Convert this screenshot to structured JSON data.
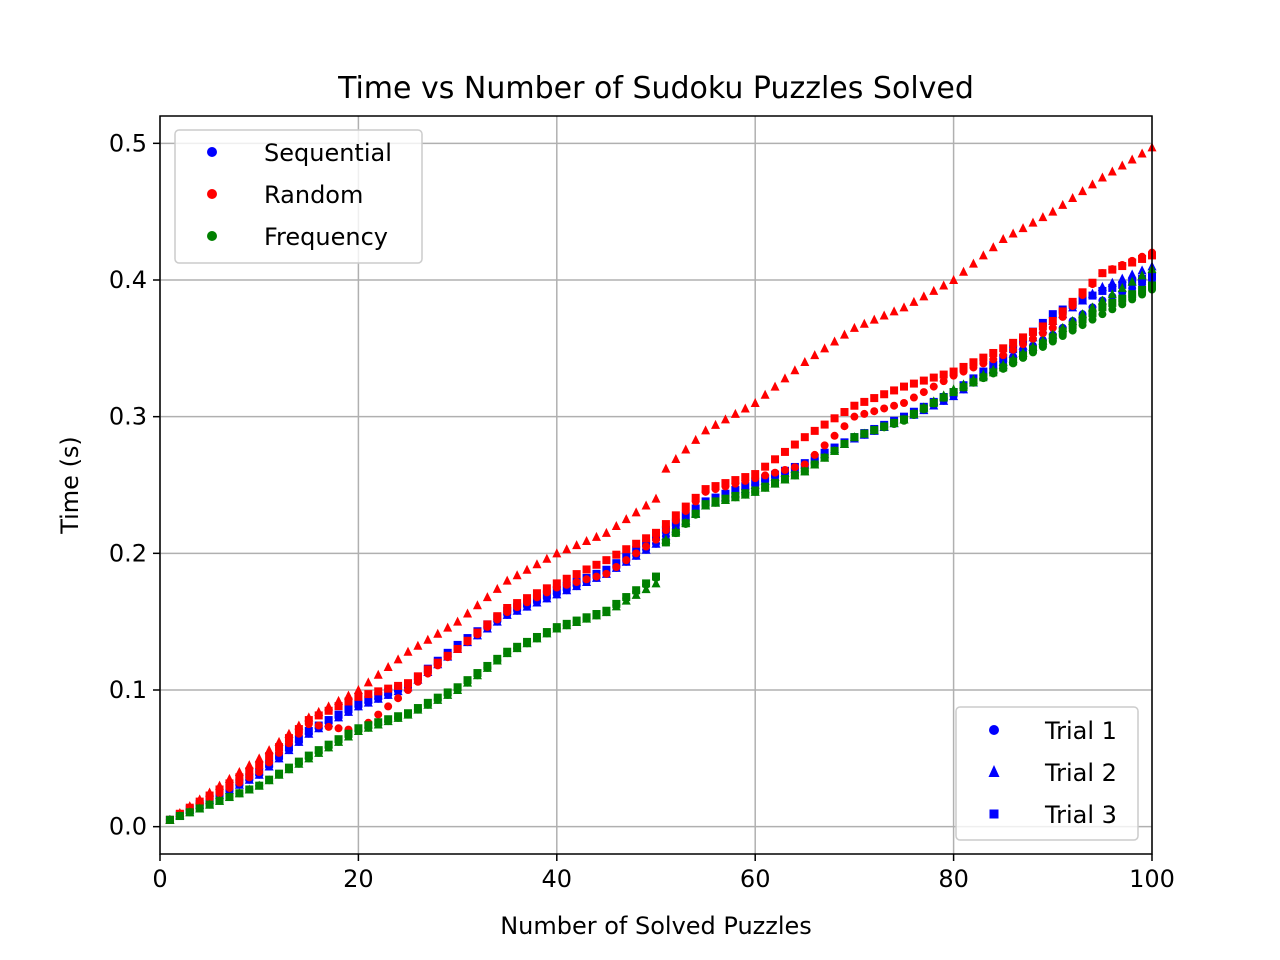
{
  "chart_data": {
    "type": "scatter",
    "title": "Time vs Number of Sudoku Puzzles Solved",
    "xlabel": "Number of Solved Puzzles",
    "ylabel": "Time (s)",
    "xlim": [
      0,
      100
    ],
    "ylim": [
      -0.02,
      0.52
    ],
    "xticks": [
      0,
      20,
      40,
      60,
      80,
      100
    ],
    "xtick_labels": [
      "0",
      "20",
      "40",
      "60",
      "80",
      "100"
    ],
    "yticks": [
      0.0,
      0.1,
      0.2,
      0.3,
      0.4,
      0.5
    ],
    "ytick_labels": [
      "0.0",
      "0.1",
      "0.2",
      "0.3",
      "0.4",
      "0.5"
    ],
    "grid": true,
    "legends": {
      "methods": {
        "placement": "upper left",
        "entries": [
          {
            "label": "Sequential",
            "color": "#0000ff"
          },
          {
            "label": "Random",
            "color": "#ff0000"
          },
          {
            "label": "Frequency",
            "color": "#008000"
          }
        ]
      },
      "trials": {
        "placement": "lower right",
        "entries": [
          {
            "label": "Trial 1",
            "marker": "circle",
            "color": "#0000ff"
          },
          {
            "label": "Trial 2",
            "marker": "triangle",
            "color": "#0000ff"
          },
          {
            "label": "Trial 3",
            "marker": "square",
            "color": "#0000ff"
          }
        ]
      }
    },
    "x_range": [
      1,
      100
    ],
    "series": [
      {
        "method": "Sequential",
        "trial": "Trial 1",
        "marker": "circle",
        "color": "#0000ff",
        "anchors": [
          [
            1,
            0.005
          ],
          [
            10,
            0.038
          ],
          [
            15,
            0.068
          ],
          [
            20,
            0.088
          ],
          [
            25,
            0.102
          ],
          [
            30,
            0.13
          ],
          [
            35,
            0.155
          ],
          [
            40,
            0.17
          ],
          [
            45,
            0.185
          ],
          [
            50,
            0.207
          ],
          [
            55,
            0.235
          ],
          [
            60,
            0.25
          ],
          [
            65,
            0.265
          ],
          [
            70,
            0.284
          ],
          [
            75,
            0.298
          ],
          [
            80,
            0.315
          ],
          [
            85,
            0.34
          ],
          [
            90,
            0.36
          ],
          [
            95,
            0.385
          ],
          [
            100,
            0.4
          ]
        ]
      },
      {
        "method": "Sequential",
        "trial": "Trial 2",
        "marker": "triangle",
        "color": "#0000ff",
        "anchors": [
          [
            1,
            0.005
          ],
          [
            10,
            0.038
          ],
          [
            15,
            0.068
          ],
          [
            20,
            0.088
          ],
          [
            25,
            0.102
          ],
          [
            30,
            0.13
          ],
          [
            35,
            0.155
          ],
          [
            40,
            0.17
          ],
          [
            45,
            0.185
          ],
          [
            50,
            0.207
          ],
          [
            55,
            0.235
          ],
          [
            60,
            0.25
          ],
          [
            65,
            0.265
          ],
          [
            70,
            0.284
          ],
          [
            75,
            0.298
          ],
          [
            80,
            0.315
          ],
          [
            85,
            0.34
          ],
          [
            90,
            0.37
          ],
          [
            95,
            0.395
          ],
          [
            100,
            0.41
          ]
        ]
      },
      {
        "method": "Sequential",
        "trial": "Trial 3",
        "marker": "square",
        "color": "#0000ff",
        "anchors": [
          [
            1,
            0.005
          ],
          [
            10,
            0.04
          ],
          [
            15,
            0.07
          ],
          [
            20,
            0.09
          ],
          [
            25,
            0.104
          ],
          [
            30,
            0.133
          ],
          [
            35,
            0.158
          ],
          [
            40,
            0.173
          ],
          [
            45,
            0.188
          ],
          [
            50,
            0.212
          ],
          [
            55,
            0.238
          ],
          [
            60,
            0.252
          ],
          [
            65,
            0.266
          ],
          [
            70,
            0.285
          ],
          [
            75,
            0.3
          ],
          [
            80,
            0.318
          ],
          [
            85,
            0.343
          ],
          [
            90,
            0.375
          ],
          [
            95,
            0.392
          ],
          [
            100,
            0.403
          ]
        ]
      },
      {
        "method": "Random",
        "trial": "Trial 1",
        "marker": "circle",
        "color": "#ff0000",
        "anchors": [
          [
            1,
            0.005
          ],
          [
            10,
            0.04
          ],
          [
            15,
            0.075
          ],
          [
            20,
            0.07
          ],
          [
            25,
            0.1
          ],
          [
            30,
            0.13
          ],
          [
            35,
            0.157
          ],
          [
            40,
            0.175
          ],
          [
            45,
            0.185
          ],
          [
            50,
            0.21
          ],
          [
            55,
            0.245
          ],
          [
            60,
            0.255
          ],
          [
            65,
            0.265
          ],
          [
            70,
            0.3
          ],
          [
            75,
            0.31
          ],
          [
            80,
            0.33
          ],
          [
            85,
            0.345
          ],
          [
            90,
            0.365
          ],
          [
            95,
            0.405
          ],
          [
            100,
            0.42
          ]
        ]
      },
      {
        "method": "Random",
        "trial": "Trial 2",
        "marker": "triangle",
        "color": "#ff0000",
        "anchors": [
          [
            1,
            0.005
          ],
          [
            10,
            0.05
          ],
          [
            15,
            0.08
          ],
          [
            20,
            0.1
          ],
          [
            25,
            0.128
          ],
          [
            30,
            0.15
          ],
          [
            35,
            0.18
          ],
          [
            40,
            0.2
          ],
          [
            45,
            0.215
          ],
          [
            50,
            0.24
          ],
          [
            51,
            0.262
          ],
          [
            55,
            0.29
          ],
          [
            60,
            0.31
          ],
          [
            65,
            0.34
          ],
          [
            70,
            0.365
          ],
          [
            75,
            0.38
          ],
          [
            80,
            0.4
          ],
          [
            85,
            0.43
          ],
          [
            90,
            0.45
          ],
          [
            95,
            0.475
          ],
          [
            100,
            0.497
          ]
        ]
      },
      {
        "method": "Random",
        "trial": "Trial 3",
        "marker": "square",
        "color": "#ff0000",
        "anchors": [
          [
            1,
            0.005
          ],
          [
            10,
            0.045
          ],
          [
            15,
            0.078
          ],
          [
            20,
            0.095
          ],
          [
            25,
            0.105
          ],
          [
            30,
            0.13
          ],
          [
            35,
            0.16
          ],
          [
            40,
            0.178
          ],
          [
            45,
            0.195
          ],
          [
            50,
            0.215
          ],
          [
            55,
            0.247
          ],
          [
            60,
            0.258
          ],
          [
            65,
            0.285
          ],
          [
            70,
            0.308
          ],
          [
            75,
            0.322
          ],
          [
            80,
            0.333
          ],
          [
            85,
            0.35
          ],
          [
            90,
            0.37
          ],
          [
            95,
            0.405
          ],
          [
            100,
            0.418
          ]
        ]
      },
      {
        "method": "Frequency",
        "trial": "Trial 1",
        "marker": "circle",
        "color": "#008000",
        "anchors": [
          [
            1,
            0.005
          ],
          [
            10,
            0.03
          ],
          [
            15,
            0.05
          ],
          [
            20,
            0.07
          ],
          [
            25,
            0.082
          ],
          [
            30,
            0.1
          ],
          [
            35,
            0.127
          ],
          [
            40,
            0.145
          ],
          [
            45,
            0.157
          ],
          [
            50,
            0.182
          ],
          [
            51,
            0.208
          ],
          [
            55,
            0.235
          ],
          [
            60,
            0.245
          ],
          [
            65,
            0.26
          ],
          [
            70,
            0.285
          ],
          [
            75,
            0.297
          ],
          [
            80,
            0.318
          ],
          [
            85,
            0.335
          ],
          [
            90,
            0.355
          ],
          [
            95,
            0.375
          ],
          [
            100,
            0.393
          ]
        ]
      },
      {
        "method": "Frequency",
        "trial": "Trial 2",
        "marker": "triangle",
        "color": "#008000",
        "anchors": [
          [
            1,
            0.005
          ],
          [
            10,
            0.03
          ],
          [
            15,
            0.05
          ],
          [
            20,
            0.07
          ],
          [
            25,
            0.082
          ],
          [
            30,
            0.1
          ],
          [
            35,
            0.127
          ],
          [
            40,
            0.145
          ],
          [
            45,
            0.157
          ],
          [
            50,
            0.178
          ],
          [
            51,
            0.21
          ],
          [
            55,
            0.235
          ],
          [
            60,
            0.245
          ],
          [
            65,
            0.26
          ],
          [
            70,
            0.285
          ],
          [
            75,
            0.298
          ],
          [
            80,
            0.32
          ],
          [
            85,
            0.338
          ],
          [
            90,
            0.36
          ],
          [
            95,
            0.385
          ],
          [
            100,
            0.408
          ]
        ]
      },
      {
        "method": "Frequency",
        "trial": "Trial 3",
        "marker": "square",
        "color": "#008000",
        "anchors": [
          [
            1,
            0.005
          ],
          [
            10,
            0.03
          ],
          [
            15,
            0.052
          ],
          [
            20,
            0.072
          ],
          [
            25,
            0.083
          ],
          [
            30,
            0.102
          ],
          [
            35,
            0.128
          ],
          [
            40,
            0.146
          ],
          [
            45,
            0.158
          ],
          [
            50,
            0.183
          ],
          [
            51,
            0.208
          ],
          [
            55,
            0.236
          ],
          [
            60,
            0.246
          ],
          [
            65,
            0.26
          ],
          [
            70,
            0.285
          ],
          [
            75,
            0.298
          ],
          [
            80,
            0.318
          ],
          [
            85,
            0.336
          ],
          [
            90,
            0.358
          ],
          [
            95,
            0.38
          ],
          [
            100,
            0.396
          ]
        ]
      }
    ]
  }
}
